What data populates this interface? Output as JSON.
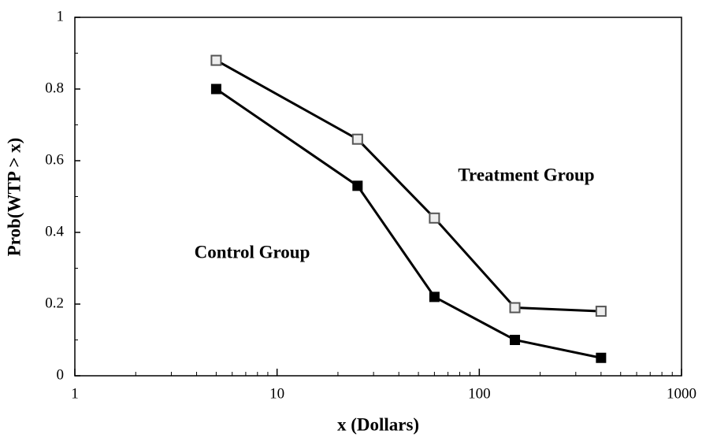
{
  "chart_data": {
    "type": "line",
    "x_label": "x (Dollars)",
    "y_label": "Prob(WTP > x)",
    "x_log": true,
    "xlim": [
      1,
      1000
    ],
    "xticks": [
      1,
      10,
      100,
      1000
    ],
    "ylim": [
      0,
      1
    ],
    "yticks": [
      0,
      0.2,
      0.4,
      0.6,
      0.8,
      1
    ],
    "grid": false,
    "x": [
      5,
      25,
      60,
      150,
      400
    ],
    "series": [
      {
        "name": "Treatment Group",
        "color": "#000000",
        "marker": "open-square",
        "values": [
          0.88,
          0.66,
          0.44,
          0.19,
          0.18
        ]
      },
      {
        "name": "Control Group",
        "color": "#000000",
        "marker": "filled-square",
        "values": [
          0.8,
          0.53,
          0.22,
          0.1,
          0.05
        ]
      }
    ]
  }
}
